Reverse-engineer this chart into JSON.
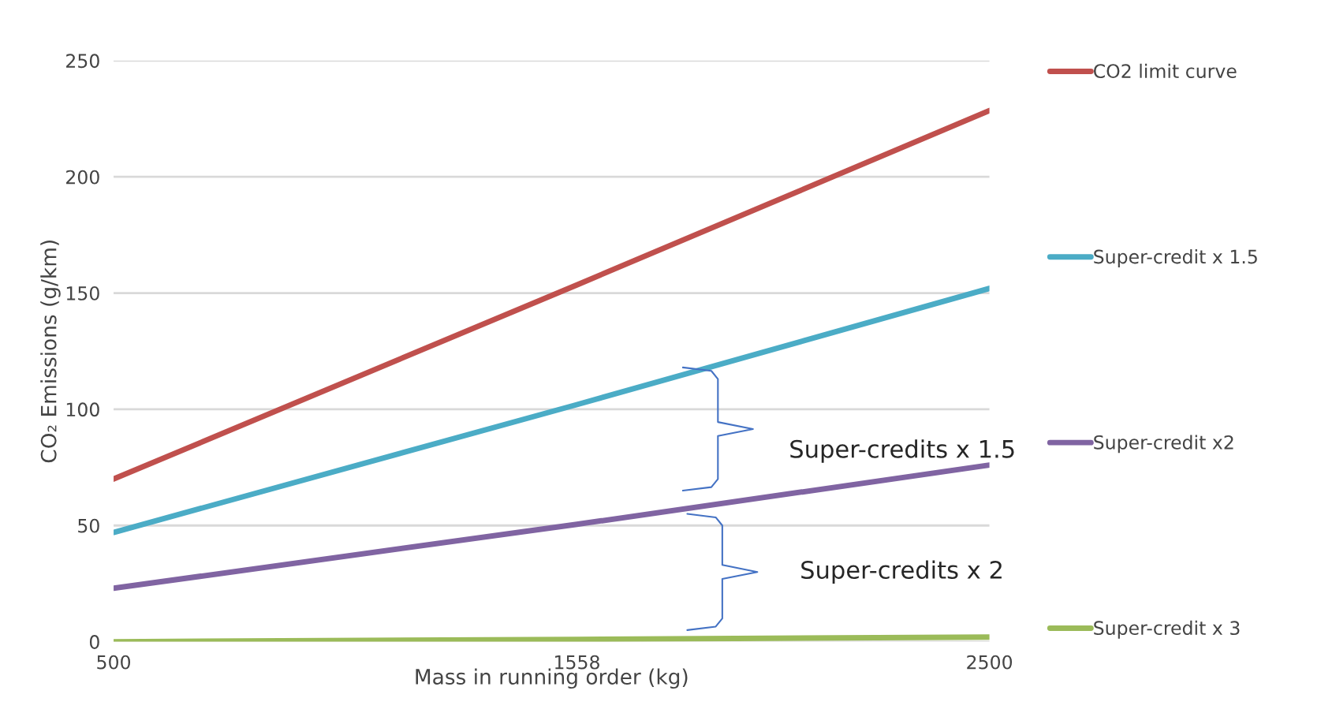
{
  "chart_data": {
    "type": "line",
    "xlabel": "Mass in running order (kg)",
    "ylabel": "CO₂ Emissions (g/km)",
    "x": [
      500,
      1558,
      2500
    ],
    "series": [
      {
        "name": "CO2 limit curve",
        "color": "#c0504d",
        "values": [
          70,
          153.5,
          228.5
        ]
      },
      {
        "name": "Super-credit x 1.5",
        "color": "#4bacc6",
        "values": [
          47,
          102,
          152
        ]
      },
      {
        "name": "Super-credit x2",
        "color": "#8064a2",
        "values": [
          23,
          50.5,
          76
        ]
      },
      {
        "name": "Super-credit x 3",
        "color": "#9bbb59",
        "values": [
          0,
          1,
          2
        ]
      }
    ],
    "xlim": [
      500,
      2500
    ],
    "xticks": [
      500,
      1558,
      2500
    ],
    "ylim": [
      0,
      250
    ],
    "yticks": [
      0,
      50,
      100,
      150,
      200,
      250
    ],
    "grid": "y",
    "legend": "right",
    "marker": "none",
    "line_style": "solid",
    "annotations": [
      "Super-credits x 1.5",
      "Super-credits x 2"
    ]
  }
}
